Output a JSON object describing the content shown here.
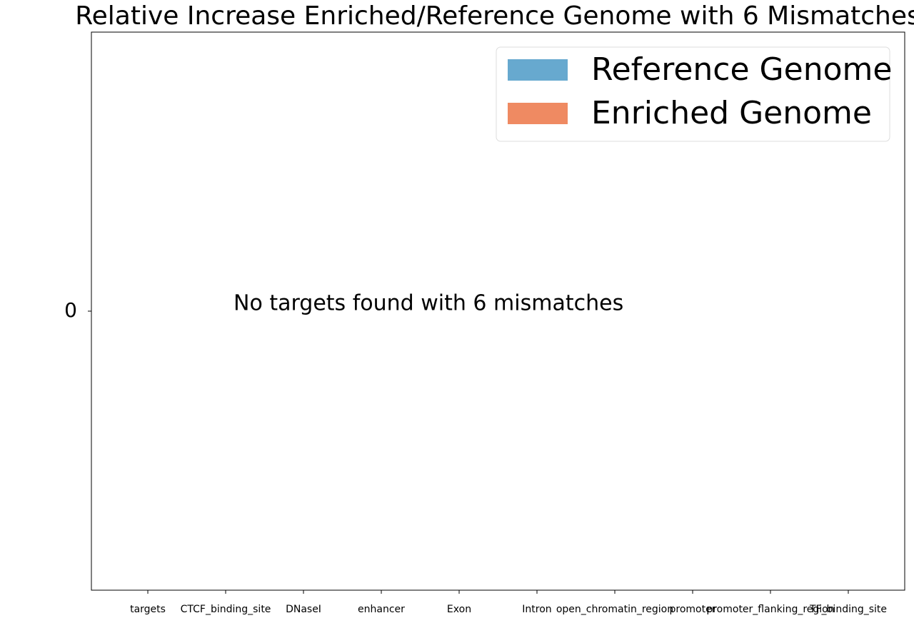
{
  "chart_data": {
    "type": "bar",
    "title": "Relative Increase Enriched/Reference Genome with 6 Mismatches",
    "annotation": "No targets found with 6 mismatches",
    "categories": [
      "targets",
      "CTCF_binding_site",
      "DNaseI",
      "enhancer",
      "Exon",
      "Intron",
      "open_chromatin_region",
      "promoter",
      "promoter_flanking_region",
      "TF_binding_site"
    ],
    "series": [
      {
        "name": "Reference Genome",
        "color": "#67a9cf",
        "values": [
          null,
          null,
          null,
          null,
          null,
          null,
          null,
          null,
          null,
          null
        ]
      },
      {
        "name": "Enriched Genome",
        "color": "#ef8a62",
        "values": [
          null,
          null,
          null,
          null,
          null,
          null,
          null,
          null,
          null,
          null
        ]
      }
    ],
    "ylim": [
      -1,
      1
    ],
    "yticks": [
      0
    ],
    "legend": "upper right"
  }
}
